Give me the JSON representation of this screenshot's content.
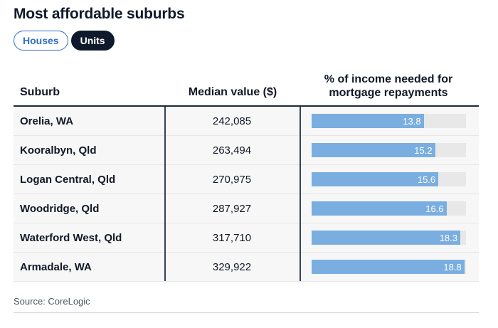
{
  "title": "Most affordable suburbs",
  "toggle": {
    "options": [
      "Houses",
      "Units"
    ],
    "selected": "Units"
  },
  "table": {
    "headers": {
      "suburb": "Suburb",
      "median": "Median value ($)",
      "pct_line1": "% of income needed for",
      "pct_line2": "mortgage repayments"
    },
    "bar_max": 19,
    "rows": [
      {
        "suburb": "Orelia, WA",
        "median": "242,085",
        "pct": "13.8",
        "pct_value": 13.8
      },
      {
        "suburb": "Kooralbyn, Qld",
        "median": "263,494",
        "pct": "15.2",
        "pct_value": 15.2
      },
      {
        "suburb": "Logan Central, Qld",
        "median": "270,975",
        "pct": "15.6",
        "pct_value": 15.6
      },
      {
        "suburb": "Woodridge, Qld",
        "median": "287,927",
        "pct": "16.6",
        "pct_value": 16.6
      },
      {
        "suburb": "Waterford West, Qld",
        "median": "317,710",
        "pct": "18.3",
        "pct_value": 18.3
      },
      {
        "suburb": "Armadale, WA",
        "median": "329,922",
        "pct": "18.8",
        "pct_value": 18.8
      }
    ]
  },
  "source": "Source: CoreLogic",
  "colors": {
    "bar_fill": "#7aaee0",
    "bar_track": "#e8e8e8",
    "active_pill": "#0e1a2b",
    "inactive_pill_border": "#2f6fbf"
  }
}
